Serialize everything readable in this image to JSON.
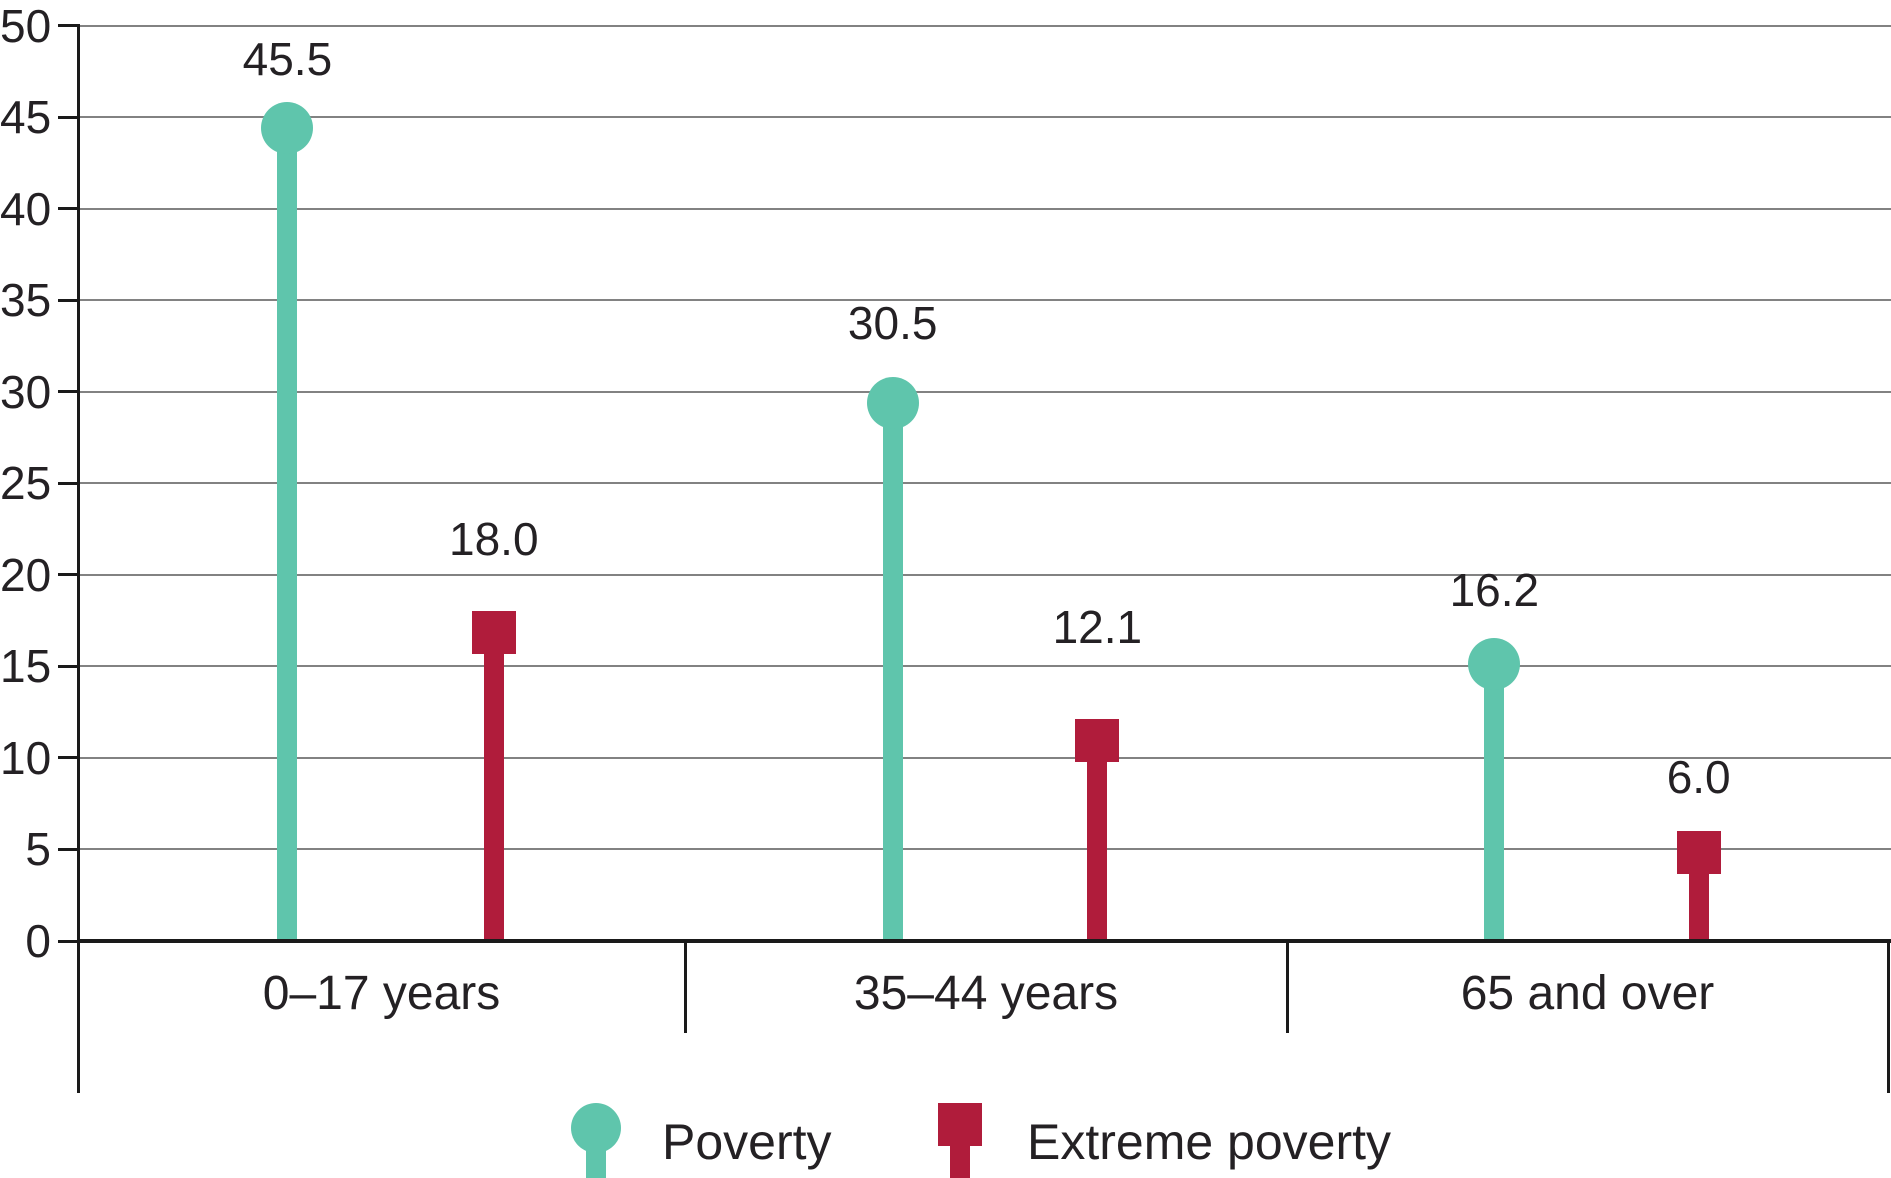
{
  "chart_data": {
    "type": "bar",
    "variant": "lollipop",
    "categories": [
      "0–17 years",
      "35–44 years",
      "65 and over"
    ],
    "series": [
      {
        "name": "Poverty",
        "marker": "circle",
        "color": "#5FC5AC",
        "values": [
          45.5,
          30.5,
          16.2
        ],
        "data_labels": [
          "45.5",
          "30.5",
          "16.2"
        ]
      },
      {
        "name": "Extreme poverty",
        "marker": "square",
        "color": "#B01C3B",
        "values": [
          18.0,
          12.1,
          6.0
        ],
        "data_labels": [
          "18.0",
          "12.1",
          "6.0"
        ]
      }
    ],
    "ylim": [
      0,
      50
    ],
    "yticks": [
      0,
      5,
      10,
      15,
      20,
      25,
      30,
      35,
      40,
      45,
      50
    ],
    "grid": true,
    "legend_position": "bottom",
    "colors": {
      "grid": "#828282",
      "axis": "#1A1A1A",
      "text": "#242124",
      "background": "#FFFFFF"
    }
  }
}
